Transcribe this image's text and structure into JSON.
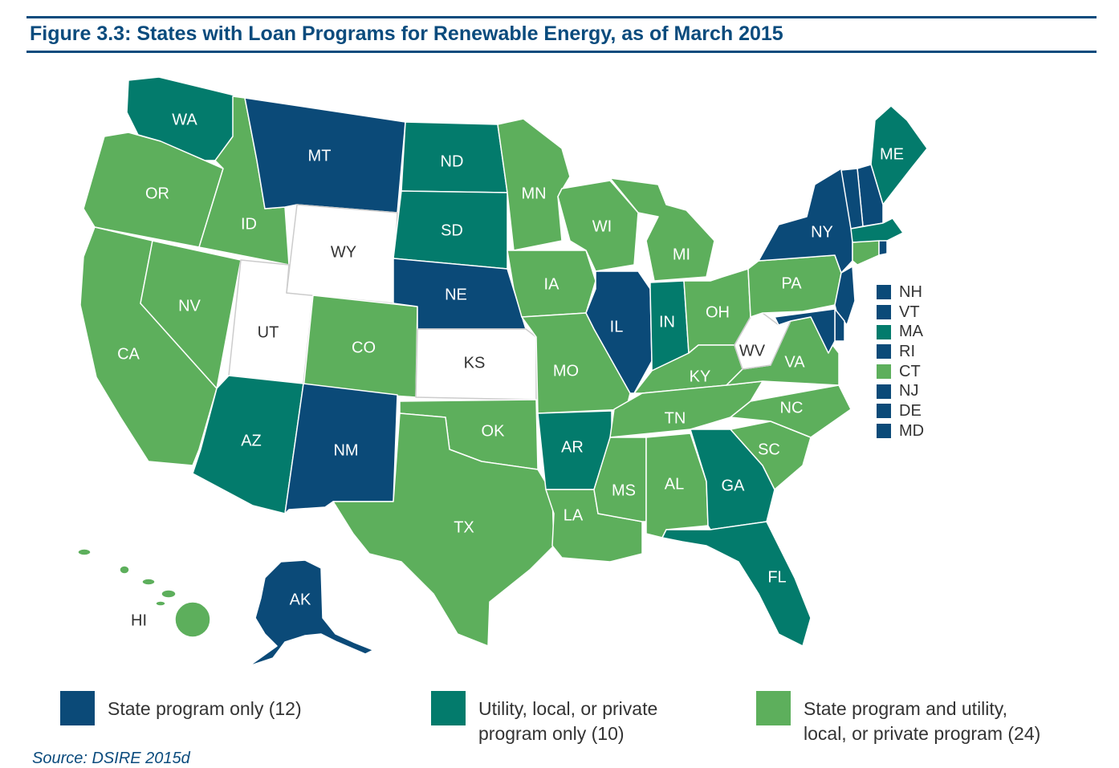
{
  "title": "Figure 3.3: States with Loan Programs for Renewable Energy, as of March 2015",
  "colors": {
    "state_only": "#0b4a78",
    "utility_only": "#037b6c",
    "both": "#5daf5c",
    "none": "#ffffff",
    "border": "#ffffff",
    "accent": "#0a4b7d"
  },
  "legend": [
    {
      "category": "state_only",
      "color": "#0b4a78",
      "line1": "State program only (12)",
      "line2": ""
    },
    {
      "category": "utility_only",
      "color": "#037b6c",
      "line1": "Utility, local, or private",
      "line2": "program only (10)"
    },
    {
      "category": "both",
      "color": "#5daf5c",
      "line1": "State program and utility,",
      "line2": "local, or private program (24)"
    }
  ],
  "small_states_legend": [
    {
      "abbr": "NH",
      "category": "state_only"
    },
    {
      "abbr": "VT",
      "category": "state_only"
    },
    {
      "abbr": "MA",
      "category": "utility_only"
    },
    {
      "abbr": "RI",
      "category": "state_only"
    },
    {
      "abbr": "CT",
      "category": "both"
    },
    {
      "abbr": "NJ",
      "category": "state_only"
    },
    {
      "abbr": "DE",
      "category": "state_only"
    },
    {
      "abbr": "MD",
      "category": "state_only"
    }
  ],
  "states": [
    {
      "abbr": "WA",
      "category": "utility_only"
    },
    {
      "abbr": "OR",
      "category": "both"
    },
    {
      "abbr": "CA",
      "category": "both"
    },
    {
      "abbr": "ID",
      "category": "both"
    },
    {
      "abbr": "NV",
      "category": "both"
    },
    {
      "abbr": "UT",
      "category": "none"
    },
    {
      "abbr": "AZ",
      "category": "utility_only"
    },
    {
      "abbr": "MT",
      "category": "state_only"
    },
    {
      "abbr": "WY",
      "category": "none"
    },
    {
      "abbr": "CO",
      "category": "both"
    },
    {
      "abbr": "NM",
      "category": "state_only"
    },
    {
      "abbr": "ND",
      "category": "utility_only"
    },
    {
      "abbr": "SD",
      "category": "utility_only"
    },
    {
      "abbr": "NE",
      "category": "state_only"
    },
    {
      "abbr": "KS",
      "category": "none"
    },
    {
      "abbr": "OK",
      "category": "both"
    },
    {
      "abbr": "TX",
      "category": "both"
    },
    {
      "abbr": "MN",
      "category": "both"
    },
    {
      "abbr": "IA",
      "category": "both"
    },
    {
      "abbr": "MO",
      "category": "both"
    },
    {
      "abbr": "AR",
      "category": "utility_only"
    },
    {
      "abbr": "LA",
      "category": "both"
    },
    {
      "abbr": "WI",
      "category": "both"
    },
    {
      "abbr": "IL",
      "category": "state_only"
    },
    {
      "abbr": "MI",
      "category": "both"
    },
    {
      "abbr": "IN",
      "category": "utility_only"
    },
    {
      "abbr": "OH",
      "category": "both"
    },
    {
      "abbr": "KY",
      "category": "both"
    },
    {
      "abbr": "TN",
      "category": "both"
    },
    {
      "abbr": "MS",
      "category": "both"
    },
    {
      "abbr": "AL",
      "category": "both"
    },
    {
      "abbr": "GA",
      "category": "utility_only"
    },
    {
      "abbr": "FL",
      "category": "utility_only"
    },
    {
      "abbr": "SC",
      "category": "both"
    },
    {
      "abbr": "NC",
      "category": "both"
    },
    {
      "abbr": "VA",
      "category": "both"
    },
    {
      "abbr": "WV",
      "category": "none"
    },
    {
      "abbr": "PA",
      "category": "both"
    },
    {
      "abbr": "NY",
      "category": "state_only"
    },
    {
      "abbr": "ME",
      "category": "utility_only"
    },
    {
      "abbr": "NH",
      "category": "state_only"
    },
    {
      "abbr": "VT",
      "category": "state_only"
    },
    {
      "abbr": "MA",
      "category": "utility_only"
    },
    {
      "abbr": "RI",
      "category": "state_only"
    },
    {
      "abbr": "CT",
      "category": "both"
    },
    {
      "abbr": "NJ",
      "category": "state_only"
    },
    {
      "abbr": "DE",
      "category": "state_only"
    },
    {
      "abbr": "MD",
      "category": "state_only"
    },
    {
      "abbr": "AK",
      "category": "state_only"
    },
    {
      "abbr": "HI",
      "category": "both"
    }
  ],
  "source": "Source: DSIRE 2015d"
}
